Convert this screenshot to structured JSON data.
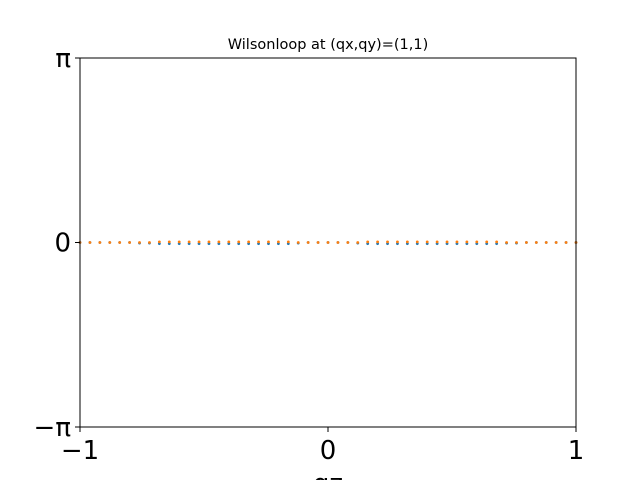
{
  "chart_data": {
    "type": "scatter",
    "title": "Wilsonloop at (qx,qy)=(1,1)",
    "xlabel": "qz",
    "ylabel": "",
    "xlim": [
      -1,
      1
    ],
    "ylim": [
      -3.14159,
      3.14159
    ],
    "xticks": [
      {
        "value": -1,
        "label": "−1"
      },
      {
        "value": 0,
        "label": "0"
      },
      {
        "value": 1,
        "label": "1"
      }
    ],
    "yticks": [
      {
        "value": -3.14159,
        "label": "−π"
      },
      {
        "value": 0,
        "label": "0"
      },
      {
        "value": 3.14159,
        "label": "π"
      }
    ],
    "grid": false,
    "legend": "none",
    "series": [
      {
        "color": "#1f77b4",
        "x": [
          -1.0,
          -0.96,
          -0.92,
          -0.88,
          -0.84,
          -0.8,
          -0.76,
          -0.72,
          -0.68,
          -0.64,
          -0.6,
          -0.56,
          -0.52,
          -0.48,
          -0.44,
          -0.4,
          -0.36,
          -0.32,
          -0.28,
          -0.24,
          -0.2,
          -0.16,
          -0.12,
          -0.08,
          -0.04,
          0.0,
          0.04,
          0.08,
          0.12,
          0.16,
          0.2,
          0.24,
          0.28,
          0.32,
          0.36,
          0.4,
          0.44,
          0.48,
          0.52,
          0.56,
          0.6,
          0.64,
          0.68,
          0.72,
          0.76,
          0.8,
          0.84,
          0.88,
          0.92,
          0.96,
          1.0
        ],
        "y": [
          0.0,
          0.0,
          0.0,
          0.0,
          0.0,
          0.0,
          -0.01,
          -0.01,
          -0.02,
          -0.02,
          -0.02,
          -0.02,
          -0.02,
          -0.02,
          -0.02,
          -0.02,
          -0.02,
          -0.02,
          -0.02,
          -0.02,
          -0.02,
          -0.02,
          -0.01,
          0.0,
          0.0,
          0.0,
          0.0,
          0.0,
          -0.01,
          -0.02,
          -0.02,
          -0.02,
          -0.02,
          -0.02,
          -0.02,
          -0.02,
          -0.02,
          -0.02,
          -0.02,
          -0.02,
          -0.02,
          -0.02,
          -0.02,
          -0.01,
          -0.01,
          0.0,
          0.0,
          0.0,
          0.0,
          0.0,
          0.0
        ]
      },
      {
        "color": "#ff7f0e",
        "x": [
          -1.0,
          -0.96,
          -0.92,
          -0.88,
          -0.84,
          -0.8,
          -0.76,
          -0.72,
          -0.68,
          -0.64,
          -0.6,
          -0.56,
          -0.52,
          -0.48,
          -0.44,
          -0.4,
          -0.36,
          -0.32,
          -0.28,
          -0.24,
          -0.2,
          -0.16,
          -0.12,
          -0.08,
          -0.04,
          0.0,
          0.04,
          0.08,
          0.12,
          0.16,
          0.2,
          0.24,
          0.28,
          0.32,
          0.36,
          0.4,
          0.44,
          0.48,
          0.52,
          0.56,
          0.6,
          0.64,
          0.68,
          0.72,
          0.76,
          0.8,
          0.84,
          0.88,
          0.92,
          0.96,
          1.0
        ],
        "y": [
          0.0,
          0.0,
          0.0,
          0.0,
          0.0,
          0.0,
          0.0,
          0.0,
          0.01,
          0.01,
          0.01,
          0.01,
          0.01,
          0.01,
          0.01,
          0.01,
          0.01,
          0.01,
          0.01,
          0.01,
          0.01,
          0.01,
          0.0,
          0.0,
          0.0,
          0.0,
          0.0,
          0.0,
          0.0,
          0.01,
          0.01,
          0.01,
          0.01,
          0.01,
          0.01,
          0.01,
          0.01,
          0.01,
          0.01,
          0.01,
          0.01,
          0.01,
          0.01,
          0.0,
          0.0,
          0.0,
          0.0,
          0.0,
          0.0,
          0.0,
          0.0
        ]
      }
    ]
  }
}
